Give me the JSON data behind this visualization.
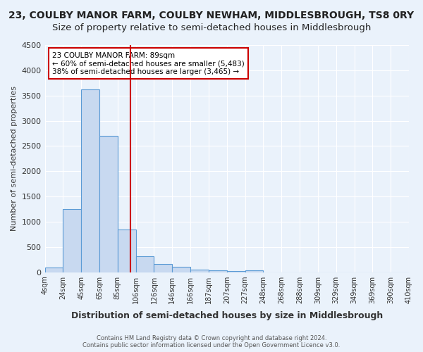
{
  "title": "23, COULBY MANOR FARM, COULBY NEWHAM, MIDDLESBROUGH, TS8 0RY",
  "subtitle": "Size of property relative to semi-detached houses in Middlesbrough",
  "xlabel": "Distribution of semi-detached houses by size in Middlesbrough",
  "ylabel": "Number of semi-detached properties",
  "footer1": "Contains HM Land Registry data © Crown copyright and database right 2024.",
  "footer2": "Contains public sector information licensed under the Open Government Licence v3.0.",
  "bin_labels": [
    "4sqm",
    "24sqm",
    "45sqm",
    "65sqm",
    "85sqm",
    "106sqm",
    "126sqm",
    "146sqm",
    "166sqm",
    "187sqm",
    "207sqm",
    "227sqm",
    "248sqm",
    "268sqm",
    "288sqm",
    "309sqm",
    "329sqm",
    "349sqm",
    "369sqm",
    "390sqm",
    "410sqm"
  ],
  "bar_values": [
    90,
    1250,
    3620,
    2700,
    840,
    320,
    155,
    100,
    55,
    35,
    20,
    30,
    0,
    0,
    0,
    0,
    0,
    0,
    0,
    0
  ],
  "bar_color": "#c8d9f0",
  "bar_edge_color": "#5b9bd5",
  "red_line_color": "#cc0000",
  "annotation_text1": "23 COULBY MANOR FARM: 89sqm",
  "annotation_text2": "← 60% of semi-detached houses are smaller (5,483)",
  "annotation_text3": "38% of semi-detached houses are larger (3,465) →",
  "annotation_box_color": "#ffffff",
  "annotation_box_edge": "#cc0000",
  "ylim": [
    0,
    4500
  ],
  "background_color": "#eaf2fb",
  "grid_color": "#ffffff",
  "title_fontsize": 10,
  "subtitle_fontsize": 9.5,
  "red_line_x": 4.19
}
